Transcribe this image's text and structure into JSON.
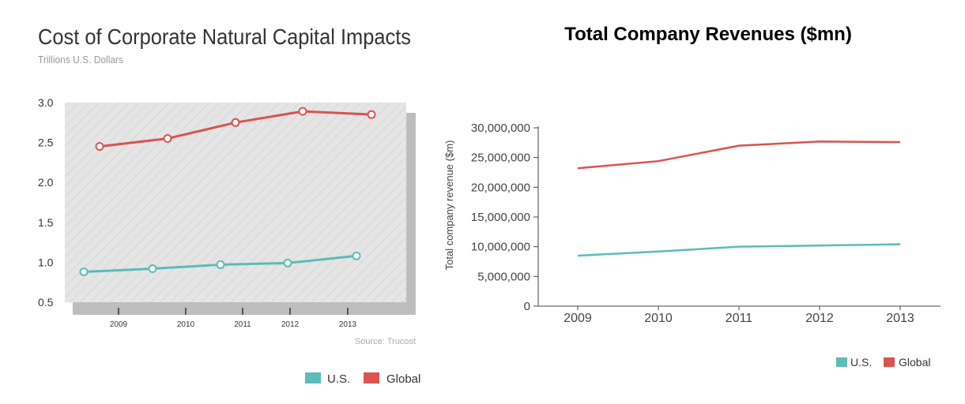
{
  "colors": {
    "us": "#5bbcb8",
    "global": "#d9534f",
    "hatch_bg": "#e5e5e5",
    "hatch_line": "#cfcfcf",
    "shadow": "#bdbdbd"
  },
  "chart_data": [
    {
      "type": "line",
      "title": "Cost of Corporate Natural Capital Impacts",
      "subtitle": "Trillions U.S. Dollars",
      "source": "Source: Trucost",
      "x": [
        2009,
        2010,
        2011,
        2012,
        2013
      ],
      "x_labels": [
        "2009",
        "2010",
        "2011",
        "2012",
        "2013"
      ],
      "y_ticks": [
        "3.0",
        "2.5",
        "2.0",
        "1.5",
        "1.0",
        "0.5"
      ],
      "ylim": [
        0.5,
        3.0
      ],
      "grid": false,
      "legend": "bottom-right",
      "series": [
        {
          "name": "U.S.",
          "values": [
            0.88,
            0.92,
            0.97,
            0.99,
            1.08
          ]
        },
        {
          "name": "Global",
          "values": [
            2.45,
            2.55,
            2.75,
            2.89,
            2.85
          ]
        }
      ]
    },
    {
      "type": "line",
      "title": "Total Company Revenues ($mn)",
      "ylabel": "Total company revenue ($m)",
      "x": [
        2009,
        2010,
        2011,
        2012,
        2013
      ],
      "x_labels": [
        "2009",
        "2010",
        "2011",
        "2012",
        "2013"
      ],
      "y_ticks": [
        "30,000,000",
        "25,000,000",
        "20,000,000",
        "15,000,000",
        "10,000,000",
        "5,000,000",
        "0"
      ],
      "ylim": [
        0,
        30000000
      ],
      "grid": false,
      "legend": "bottom-right",
      "series": [
        {
          "name": "U.S.",
          "values": [
            8500000,
            9200000,
            10000000,
            10200000,
            10400000
          ]
        },
        {
          "name": "Global",
          "values": [
            23200000,
            24400000,
            27000000,
            27700000,
            27600000
          ]
        }
      ]
    }
  ]
}
